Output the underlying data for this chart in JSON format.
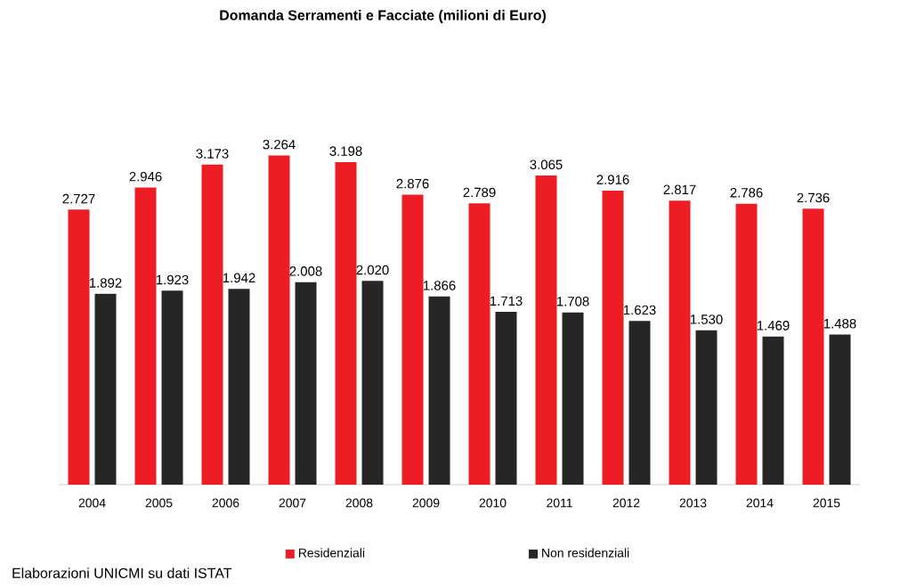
{
  "chart_data": {
    "type": "bar",
    "title": "Domanda Serramenti e Facciate (milioni di Euro)",
    "categories": [
      "2004",
      "2005",
      "2006",
      "2007",
      "2008",
      "2009",
      "2010",
      "2011",
      "2012",
      "2013",
      "2014",
      "2015"
    ],
    "series": [
      {
        "name": "Residenziali",
        "color": "#ee1c25",
        "values": [
          2727,
          2946,
          3173,
          3264,
          3198,
          2876,
          2789,
          3065,
          2916,
          2817,
          2786,
          2736
        ],
        "value_labels": [
          "2.727",
          "2.946",
          "3.173",
          "3.264",
          "3.198",
          "2.876",
          "2.789",
          "3.065",
          "2.916",
          "2.817",
          "2.786",
          "2.736"
        ]
      },
      {
        "name": "Non residenziali",
        "color": "#262626",
        "values": [
          1892,
          1923,
          1942,
          2008,
          2020,
          1866,
          1713,
          1708,
          1623,
          1530,
          1469,
          1488
        ],
        "value_labels": [
          "1.892",
          "1.923",
          "1.942",
          "2.008",
          "2.020",
          "1.866",
          "1.713",
          "1.708",
          "1.623",
          "1.530",
          "1.469",
          "1.488"
        ]
      }
    ],
    "legend": "bottom",
    "annotations": [
      "Elaborazioni UNICMI su dati ISTAT"
    ]
  }
}
